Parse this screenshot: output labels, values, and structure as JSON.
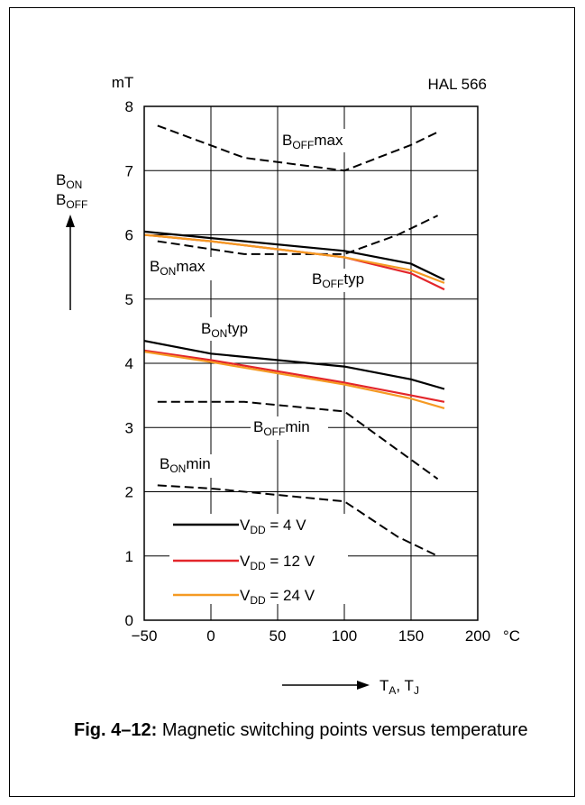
{
  "chart_data": {
    "type": "line",
    "title": "HAL 566",
    "y_unit": "mT",
    "x_unit": "°C",
    "ylabel_lines": [
      {
        "main": "B",
        "sub": "ON"
      },
      {
        "main": "B",
        "sub": "OFF"
      }
    ],
    "xlabel": {
      "a_main": "T",
      "a_sub": "A",
      "sep": ", ",
      "b_main": "T",
      "b_sub": "J"
    },
    "xlim": [
      -50,
      200
    ],
    "ylim": [
      0,
      8
    ],
    "x_ticks": [
      "−50",
      "0",
      "50",
      "100",
      "150",
      "200"
    ],
    "y_ticks": [
      "0",
      "1",
      "2",
      "3",
      "4",
      "5",
      "6",
      "7",
      "8"
    ],
    "grid": true,
    "colors": {
      "vdd4": "#000000",
      "vdd12": "#e3262b",
      "vdd24": "#f59a23",
      "limit": "#000000"
    },
    "legend": {
      "placement": "bottom-left",
      "entries": [
        {
          "prefix": "V",
          "sub": "DD",
          "suffix": " = 4 V",
          "color": "#000000"
        },
        {
          "prefix": "V",
          "sub": "DD",
          "suffix": " = 12 V",
          "color": "#e3262b"
        },
        {
          "prefix": "V",
          "sub": "DD",
          "suffix": " = 24 V",
          "color": "#f59a23"
        }
      ]
    },
    "annotations": [
      {
        "main": "B",
        "sub": "OFF",
        "suffix": "max"
      },
      {
        "main": "B",
        "sub": "ON",
        "suffix": "max"
      },
      {
        "main": "B",
        "sub": "OFF",
        "suffix": "typ"
      },
      {
        "main": "B",
        "sub": "ON",
        "suffix": "typ"
      },
      {
        "main": "B",
        "sub": "OFF",
        "suffix": "min"
      },
      {
        "main": "B",
        "sub": "ON",
        "suffix": "min"
      }
    ],
    "limit_series": [
      {
        "x": [
          -40,
          25,
          100,
          150,
          170
        ],
        "y": [
          7.7,
          7.2,
          7.0,
          7.4,
          7.6
        ]
      },
      {
        "x": [
          -40,
          25,
          100,
          140,
          170
        ],
        "y": [
          5.9,
          5.7,
          5.7,
          6.0,
          6.3
        ]
      },
      {
        "x": [
          -40,
          25,
          100,
          150,
          170
        ],
        "y": [
          3.4,
          3.4,
          3.25,
          2.5,
          2.2
        ]
      },
      {
        "x": [
          -40,
          0,
          100,
          140,
          170
        ],
        "y": [
          2.1,
          2.05,
          1.85,
          1.3,
          1.0
        ]
      }
    ],
    "series": [
      {
        "name": "B_OFF typ, V_DD = 4 V",
        "color": "#000000",
        "x": [
          -50,
          0,
          100,
          150,
          175
        ],
        "y": [
          6.05,
          5.95,
          5.75,
          5.55,
          5.3
        ]
      },
      {
        "name": "B_OFF typ, V_DD = 12 V",
        "color": "#e3262b",
        "x": [
          -50,
          0,
          100,
          150,
          175
        ],
        "y": [
          6.0,
          5.9,
          5.65,
          5.4,
          5.15
        ]
      },
      {
        "name": "B_OFF typ, V_DD = 24 V",
        "color": "#f59a23",
        "x": [
          -50,
          0,
          100,
          150,
          175
        ],
        "y": [
          6.0,
          5.9,
          5.65,
          5.45,
          5.25
        ]
      },
      {
        "name": "B_ON typ, V_DD = 4 V",
        "color": "#000000",
        "x": [
          -50,
          0,
          100,
          150,
          175
        ],
        "y": [
          4.35,
          4.15,
          3.95,
          3.75,
          3.6
        ]
      },
      {
        "name": "B_ON typ, V_DD = 12 V",
        "color": "#e3262b",
        "x": [
          -50,
          0,
          100,
          150,
          175
        ],
        "y": [
          4.2,
          4.05,
          3.7,
          3.5,
          3.4
        ]
      },
      {
        "name": "B_ON typ, V_DD = 24 V",
        "color": "#f59a23",
        "x": [
          -50,
          0,
          100,
          150,
          175
        ],
        "y": [
          4.18,
          4.02,
          3.67,
          3.45,
          3.3
        ]
      }
    ]
  },
  "caption": {
    "label": "Fig. 4–12:",
    "text": " Magnetic switching points versus temperature"
  }
}
